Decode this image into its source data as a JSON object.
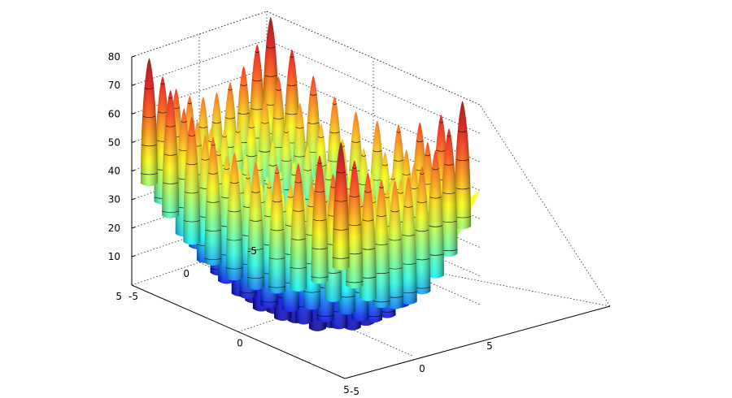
{
  "chart_data": {
    "type": "surface",
    "title": "",
    "xlabel": "",
    "ylabel": "",
    "zlabel": "",
    "function": "z = 20 + x^2 + y^2 - 10*(cos(2*pi*x) + cos(2*pi*y))",
    "x_range": [
      -5,
      5
    ],
    "y_range": [
      -5,
      5
    ],
    "zlim": [
      0,
      80
    ],
    "x_ticks": [
      -5,
      0,
      5
    ],
    "y_ticks": [
      -5,
      0,
      5
    ],
    "z_ticks": [
      10,
      20,
      30,
      40,
      50,
      60,
      70,
      80
    ],
    "x_tick_labels": [
      "-5",
      "0",
      "5"
    ],
    "y_tick_labels": [
      "-5",
      "0",
      "5"
    ],
    "z_tick_labels": [
      "10",
      "20",
      "30",
      "40",
      "50",
      "60",
      "70",
      "80"
    ],
    "colormap": "jet",
    "colormap_stops": [
      "#00008f",
      "#0000ff",
      "#00ffff",
      "#7fff7f",
      "#ffff00",
      "#ff7f00",
      "#ff0000",
      "#800000"
    ],
    "contour_lines": true,
    "grid": true,
    "background": "#ffffff"
  }
}
